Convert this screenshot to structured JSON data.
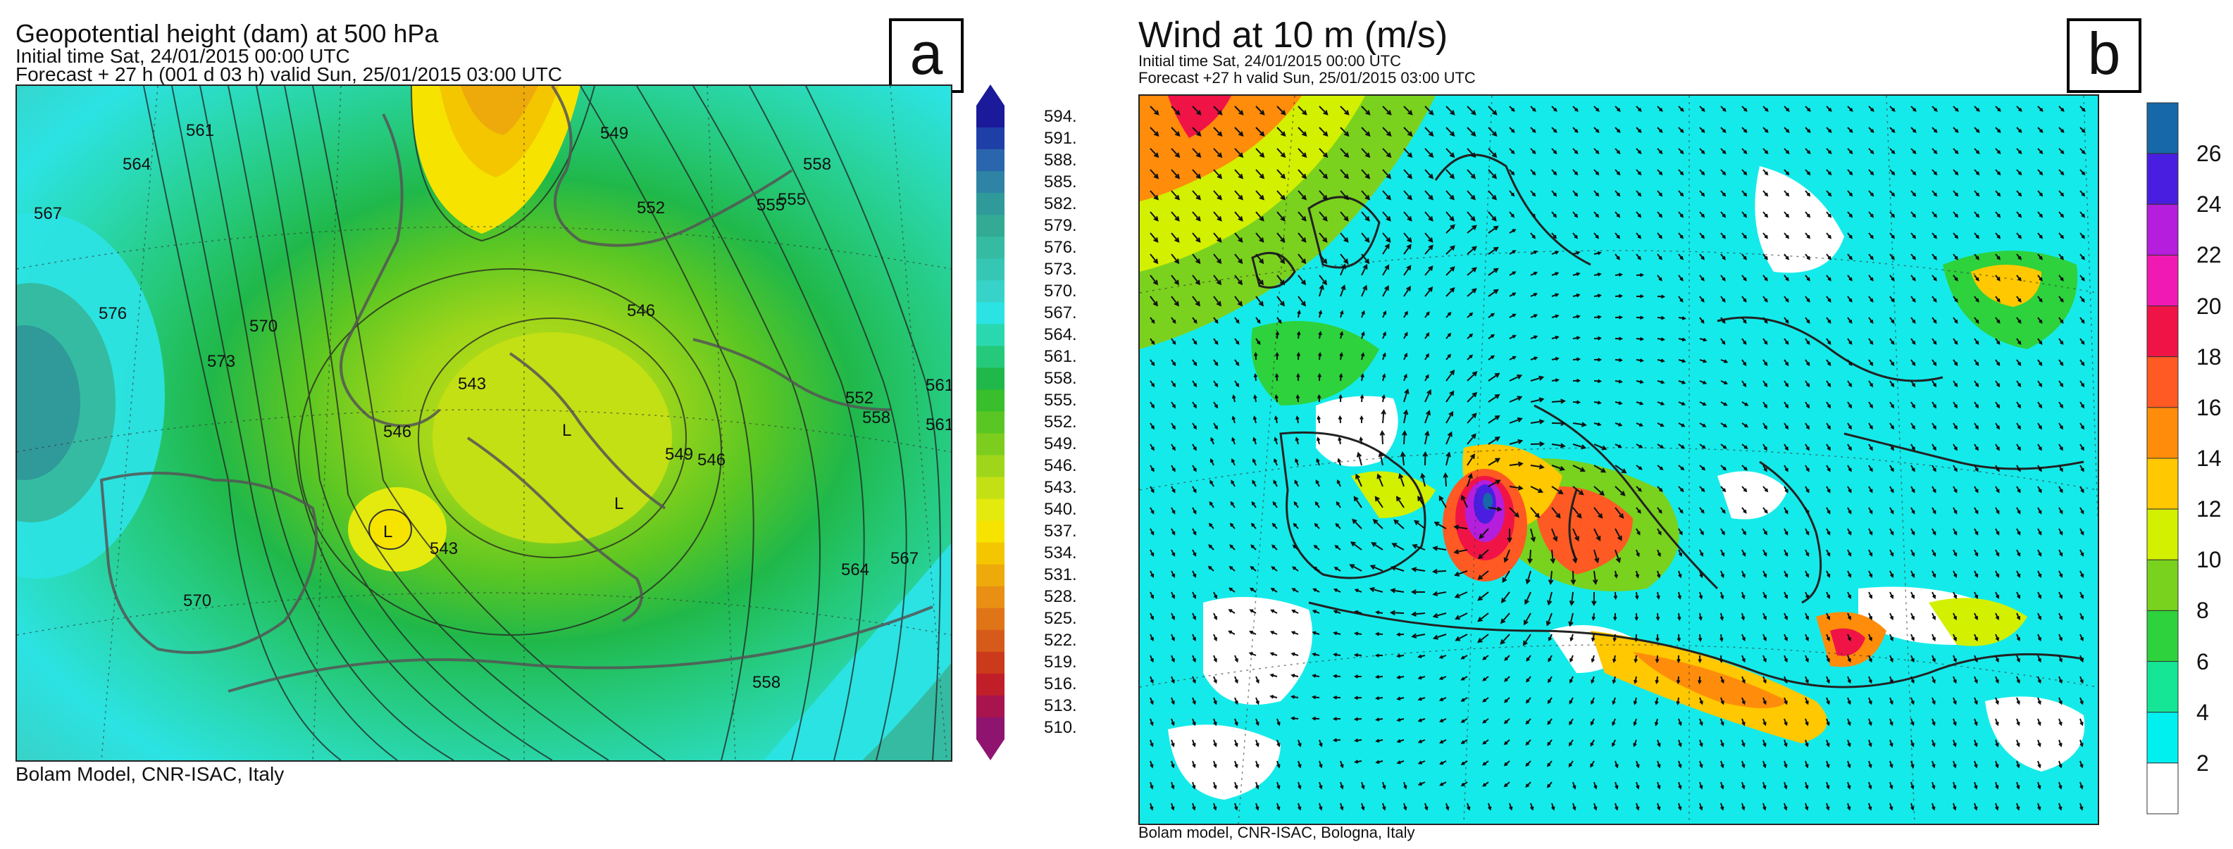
{
  "panel_a": {
    "title": "Geopotential height (dam) at 500 hPa",
    "initial_time": "Initial time  Sat, 24/01/2015  00:00 UTC",
    "forecast": "Forecast  +  27 h  (001 d 03 h)  valid Sun, 25/01/2015 03:00 UTC",
    "badge": "a",
    "credit": "Bolam Model, CNR-ISAC, Italy",
    "colorbar_labels": [
      "594.",
      "591.",
      "588.",
      "585.",
      "582.",
      "579.",
      "576.",
      "573.",
      "570.",
      "567.",
      "564.",
      "561.",
      "558.",
      "555.",
      "552.",
      "549.",
      "546.",
      "543.",
      "540.",
      "537.",
      "534.",
      "531.",
      "528.",
      "525.",
      "522.",
      "519.",
      "516.",
      "513.",
      "510."
    ],
    "colorbar_colors": [
      "#1a1a9a",
      "#1f3fa8",
      "#2a66ad",
      "#2f84a5",
      "#2f9a99",
      "#33ab94",
      "#35bba2",
      "#36c6b4",
      "#37d3c8",
      "#2be3e3",
      "#2ad8b0",
      "#25c97a",
      "#20b84a",
      "#39bf2c",
      "#5ac623",
      "#7ccd1e",
      "#9fd61a",
      "#c3e014",
      "#e4ea0e",
      "#f6e300",
      "#f3c600",
      "#eeaa0a",
      "#e88f14",
      "#e07518",
      "#d65a1a",
      "#cc3a1c",
      "#c01f2a",
      "#a8144e",
      "#8e1470"
    ],
    "contour_labels": [
      "561",
      "564",
      "567",
      "570",
      "573",
      "576",
      "546",
      "543",
      "543",
      "546",
      "549",
      "552",
      "555",
      "558",
      "561",
      "564",
      "567",
      "570",
      "552",
      "555",
      "558",
      "561",
      "558",
      "549",
      "546"
    ],
    "lows": [
      "L",
      "L",
      "L"
    ]
  },
  "panel_b": {
    "title": "Wind at 10 m (m/s)",
    "initial_time": "Initial time  Sat, 24/01/2015 00:00 UTC",
    "forecast": "Forecast +27 h valid  Sun, 25/01/2015 03:00 UTC",
    "badge": "b",
    "credit": "Bolam model, CNR-ISAC, Bologna, Italy",
    "colorbar_labels": [
      "26",
      "24",
      "22",
      "20",
      "18",
      "16",
      "14",
      "12",
      "10",
      "8",
      "6",
      "4",
      "2"
    ],
    "colorbar_colors": [
      "#1668a8",
      "#4a1ee0",
      "#b41edc",
      "#f019b4",
      "#f01446",
      "#ff5a23",
      "#ff8c0a",
      "#ffc800",
      "#d2f000",
      "#78d21e",
      "#2dd23c",
      "#14e696",
      "#00f0f0",
      "#ffffff"
    ]
  }
}
